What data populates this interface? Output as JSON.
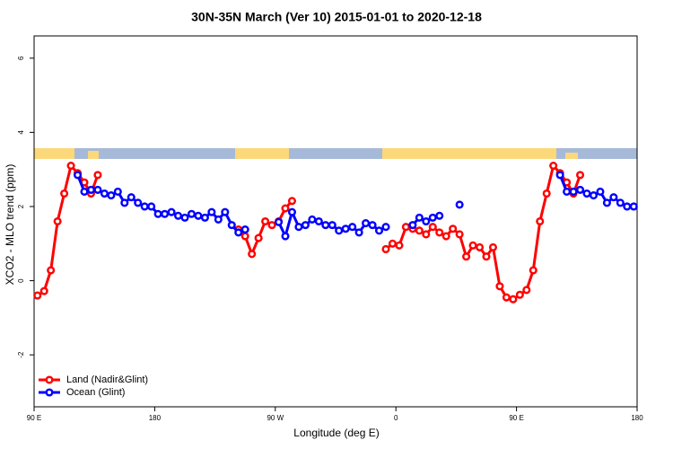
{
  "chart_data": {
    "type": "line",
    "title": "30N-35N March (Ver 10)   2015-01-01 to 2020-12-18",
    "x_label": "Longitude (deg E)",
    "y_label": "XCO2 - MLO trend (ppm)",
    "x": [
      92.5,
      97.5,
      102.5,
      107.5,
      112.5,
      117.5,
      122.5,
      127.5,
      132.5,
      137.5,
      142.5,
      147.5,
      152.5,
      157.5,
      162.5,
      167.5,
      172.5,
      177.5,
      182.5,
      187.5,
      192.5,
      197.5,
      202.5,
      207.5,
      212.5,
      217.5,
      222.5,
      227.5,
      232.5,
      237.5,
      242.5,
      247.5,
      252.5,
      257.5,
      262.5,
      267.5,
      272.5,
      277.5,
      282.5,
      287.5,
      292.5,
      297.5,
      302.5,
      307.5,
      312.5,
      317.5,
      322.5,
      327.5,
      332.5,
      337.5,
      342.5,
      347.5,
      352.5,
      357.5,
      362.5,
      367.5,
      372.5,
      377.5,
      382.5,
      387.5,
      392.5,
      397.5,
      402.5,
      407.5,
      412.5,
      417.5,
      422.5,
      427.5,
      432.5,
      437.5,
      442.5,
      447.5,
      452.5,
      457.5,
      462.5,
      467.5,
      472.5,
      477.5,
      482.5,
      487.5,
      492.5,
      497.5,
      502.5,
      507.5,
      512.5,
      517.5,
      522.5,
      527.5,
      532.5,
      537.5
    ],
    "series": [
      {
        "name": "Land (Nadir&Glint)",
        "color": "#ff0000",
        "values": [
          -0.4,
          -0.28,
          0.28,
          1.6,
          2.35,
          3.1,
          2.9,
          2.65,
          2.35,
          2.85,
          null,
          null,
          null,
          null,
          null,
          null,
          null,
          null,
          null,
          null,
          null,
          null,
          null,
          null,
          null,
          null,
          null,
          null,
          null,
          null,
          1.38,
          1.2,
          0.72,
          1.15,
          1.6,
          1.5,
          1.6,
          1.95,
          2.15,
          null,
          null,
          null,
          null,
          null,
          null,
          null,
          null,
          null,
          null,
          null,
          null,
          null,
          0.85,
          1.0,
          0.95,
          1.45,
          1.4,
          1.35,
          1.25,
          1.45,
          1.3,
          1.2,
          1.4,
          1.25,
          0.65,
          0.95,
          0.9,
          0.65,
          0.9,
          -0.15,
          -0.45,
          -0.5,
          -0.38,
          -0.25,
          0.28,
          1.6,
          2.35,
          3.1,
          2.9,
          2.65,
          2.35,
          2.85,
          null,
          null,
          null,
          null,
          null,
          null,
          null,
          null
        ]
      },
      {
        "name": "Ocean (Glint)",
        "color": "#0000ff",
        "values": [
          null,
          null,
          null,
          null,
          null,
          null,
          2.85,
          2.4,
          2.45,
          2.45,
          2.35,
          2.3,
          2.4,
          2.1,
          2.25,
          2.1,
          2.0,
          2.0,
          1.8,
          1.8,
          1.85,
          1.75,
          1.7,
          1.8,
          1.75,
          1.7,
          1.85,
          1.65,
          1.85,
          1.5,
          1.3,
          1.38,
          null,
          null,
          null,
          null,
          1.58,
          1.2,
          1.85,
          1.45,
          1.5,
          1.65,
          1.6,
          1.5,
          1.5,
          1.35,
          1.4,
          1.45,
          1.3,
          1.55,
          1.5,
          1.35,
          1.45,
          null,
          null,
          null,
          1.5,
          1.7,
          1.6,
          1.7,
          1.75,
          null,
          null,
          2.05,
          null,
          null,
          null,
          null,
          null,
          null,
          null,
          null,
          null,
          null,
          null,
          null,
          null,
          null,
          2.85,
          2.4,
          2.4,
          2.45,
          2.35,
          2.3,
          2.4,
          2.1,
          2.25,
          2.1,
          2.0,
          2.0
        ]
      }
    ],
    "xlim": [
      90,
      540
    ],
    "xticks": [
      {
        "value": 90,
        "label": "90 E"
      },
      180,
      {
        "value": 270,
        "label": "90 W"
      },
      {
        "value": 360,
        "label": "0"
      },
      {
        "value": 450,
        "label": "90 E"
      },
      {
        "value": 540,
        "label": "180"
      }
    ],
    "ylim": [
      -3.4,
      6.6
    ],
    "yticks": [
      -2,
      0,
      2,
      4,
      6
    ],
    "legend": "bottom-left"
  }
}
